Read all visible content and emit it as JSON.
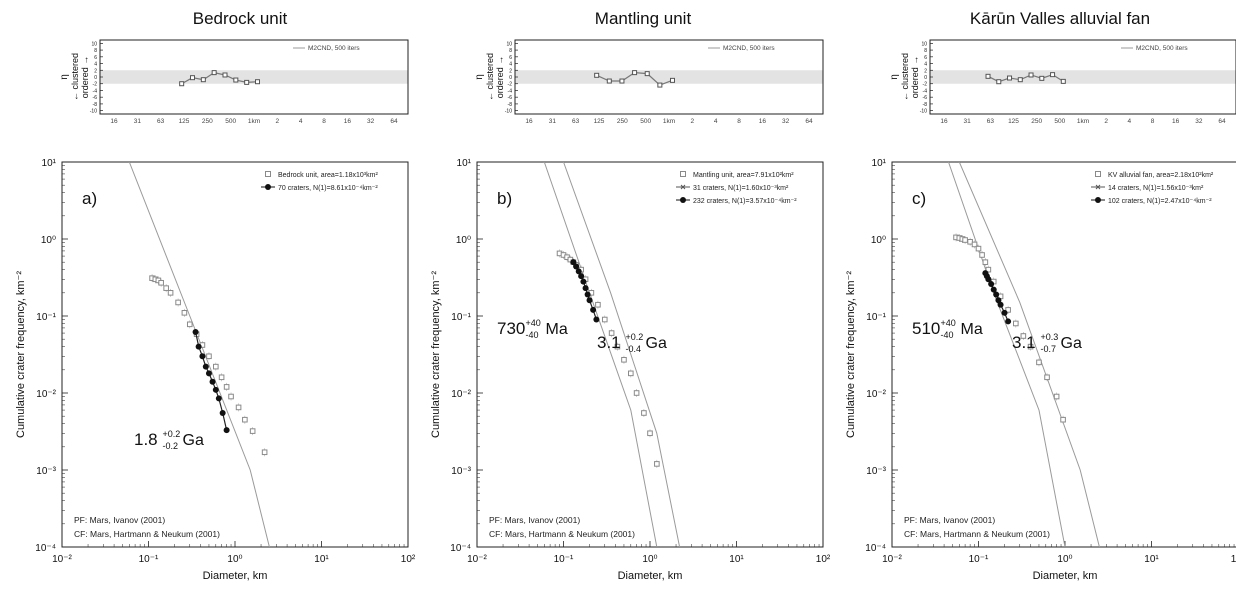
{
  "colors": {
    "ordered_band": "#e3e3e3",
    "curve": "#9a9a9a",
    "data_filled": "#111111",
    "data_open": "#8a8a8a",
    "axis": "#222222"
  },
  "shared": {
    "rand_ticks": [
      "16",
      "31",
      "63",
      "125",
      "250",
      "500",
      "1km",
      "2",
      "4",
      "8",
      "16",
      "32",
      "64"
    ],
    "rand_y_ticks": [
      "10",
      "8",
      "6",
      "4",
      "2",
      "0",
      "-2",
      "-4",
      "-6",
      "-8",
      "-10"
    ],
    "rand_legend": "M2CND, 500 iters",
    "rand_ylabel": {
      "line1": "← clustered",
      "line2": "ordered →",
      "symbol": "η"
    },
    "ylabel": "Cumulative crater frequency, km⁻²",
    "xlabel": "Diameter, km",
    "y_ticks": [
      "10¹",
      "10⁰",
      "10⁻¹",
      "10⁻²",
      "10⁻³",
      "10⁻⁴"
    ],
    "x_ticks": [
      "10⁻²",
      "10⁻¹",
      "10⁰",
      "10¹",
      "10²"
    ],
    "pf_label": "PF: Mars, Ivanov (2001)",
    "cf_label": "CF: Mars, Hartmann & Neukum (2001)"
  },
  "chart_data": [
    {
      "type": "scatter",
      "title": "Bedrock unit",
      "panel_letter": "a)",
      "xscale": "log",
      "yscale": "log",
      "xlim": [
        0.01,
        100
      ],
      "ylim": [
        0.0001,
        10
      ],
      "randomness": {
        "x_labels": [
          "125",
          "250",
          "500",
          "1km"
        ],
        "values": [
          -2.0,
          -0.2,
          -0.8,
          1.3,
          0.6,
          -0.9,
          -1.6,
          -1.4
        ]
      },
      "legend": [
        {
          "label": "Bedrock unit, area=1.18x10³km²",
          "marker": "open"
        },
        {
          "label": "70 craters, N(1)=8.61x10⁻⁴km⁻²",
          "marker": "filled"
        }
      ],
      "ages": [
        {
          "value": "1.8",
          "plus": "+0.2",
          "minus": "-0.2",
          "unit": "Ga"
        }
      ],
      "series": [
        {
          "name": "Bedrock unit, area=1.18x10³km²",
          "marker": "open",
          "x": [
            0.11,
            0.12,
            0.13,
            0.14,
            0.16,
            0.18,
            0.22,
            0.26,
            0.3,
            0.36,
            0.42,
            0.5,
            0.6,
            0.7,
            0.8,
            0.9,
            1.1,
            1.3,
            1.6,
            2.2
          ],
          "y": [
            0.31,
            0.3,
            0.29,
            0.27,
            0.23,
            0.2,
            0.15,
            0.11,
            0.078,
            0.058,
            0.042,
            0.03,
            0.022,
            0.016,
            0.012,
            0.009,
            0.0065,
            0.0045,
            0.0032,
            0.0017
          ]
        },
        {
          "name": "70 craters, N(1)=8.61x10⁻⁴km⁻²",
          "marker": "filled",
          "x": [
            0.35,
            0.38,
            0.42,
            0.46,
            0.5,
            0.55,
            0.6,
            0.65,
            0.72,
            0.8
          ],
          "y": [
            0.062,
            0.04,
            0.03,
            0.022,
            0.018,
            0.014,
            0.011,
            0.0085,
            0.0055,
            0.0033
          ]
        }
      ],
      "curves": [
        {
          "name": "PF",
          "points": [
            [
              0.06,
              10
            ],
            [
              0.3,
              0.1
            ],
            [
              1.5,
              0.001
            ],
            [
              2.5,
              0.0001
            ]
          ]
        }
      ]
    },
    {
      "type": "scatter",
      "title": "Mantling unit",
      "panel_letter": "b)",
      "xscale": "log",
      "yscale": "log",
      "xlim": [
        0.01,
        100
      ],
      "ylim": [
        0.0001,
        10
      ],
      "randomness": {
        "x_labels": [
          "125",
          "250",
          "500",
          "1km"
        ],
        "values": [
          0.5,
          -1.2,
          -1.2,
          1.3,
          1.0,
          -2.4,
          -1.0
        ]
      },
      "legend": [
        {
          "label": "Mantling unit, area=7.91x10²km²",
          "marker": "open"
        },
        {
          "label": "31 craters, N(1)=1.60x10⁻³km²",
          "marker": "cross"
        },
        {
          "label": "232 craters, N(1)=3.57x10⁻⁴km⁻²",
          "marker": "filled"
        }
      ],
      "ages": [
        {
          "value": "730",
          "plus": "+40",
          "minus": "-40",
          "unit": "Ma"
        },
        {
          "value": "3.1",
          "plus": "+0.2",
          "minus": "-0.4",
          "unit": "Ga"
        }
      ],
      "series": [
        {
          "name": "Mantling unit, area=7.91x10²km²",
          "marker": "open",
          "x": [
            0.09,
            0.1,
            0.11,
            0.12,
            0.13,
            0.14,
            0.16,
            0.18,
            0.21,
            0.25,
            0.3,
            0.36,
            0.42,
            0.5,
            0.6,
            0.7,
            0.85,
            1.0,
            1.2
          ],
          "y": [
            0.65,
            0.62,
            0.58,
            0.54,
            0.5,
            0.46,
            0.4,
            0.3,
            0.2,
            0.14,
            0.09,
            0.06,
            0.04,
            0.027,
            0.018,
            0.01,
            0.0055,
            0.003,
            0.0012
          ]
        },
        {
          "name": "232 craters, N(1)=3.57x10⁻⁴km⁻²",
          "marker": "filled",
          "x": [
            0.13,
            0.14,
            0.15,
            0.16,
            0.17,
            0.18,
            0.19,
            0.2,
            0.22,
            0.24
          ],
          "y": [
            0.5,
            0.44,
            0.38,
            0.33,
            0.28,
            0.23,
            0.19,
            0.16,
            0.12,
            0.09
          ]
        }
      ],
      "curves": [
        {
          "name": "PF",
          "points": [
            [
              0.06,
              10
            ],
            [
              0.2,
              0.2
            ],
            [
              0.6,
              0.006
            ],
            [
              1.2,
              0.0001
            ]
          ]
        },
        {
          "name": "CF",
          "points": [
            [
              0.1,
              10
            ],
            [
              0.35,
              0.2
            ],
            [
              1.2,
              0.003
            ],
            [
              2.2,
              0.0001
            ]
          ]
        }
      ]
    },
    {
      "type": "scatter",
      "title": "Kārūn Valles alluvial fan",
      "panel_letter": "c)",
      "xscale": "log",
      "yscale": "log",
      "xlim": [
        0.01,
        100
      ],
      "ylim": [
        0.0001,
        10
      ],
      "randomness": {
        "x_labels": [
          "63",
          "125",
          "250",
          "500"
        ],
        "values": [
          0.2,
          -1.4,
          -0.3,
          -0.8,
          0.6,
          -0.4,
          0.7,
          -1.3
        ]
      },
      "legend": [
        {
          "label": "KV alluvial fan, area=2.18x10²km²",
          "marker": "open"
        },
        {
          "label": "14 craters, N(1)=1.56x10⁻³km²",
          "marker": "cross"
        },
        {
          "label": "102 craters, N(1)=2.47x10⁻⁴km⁻²",
          "marker": "filled"
        }
      ],
      "ages": [
        {
          "value": "510",
          "plus": "+40",
          "minus": "-40",
          "unit": "Ma"
        },
        {
          "value": "3.1",
          "plus": "+0.3",
          "minus": "-0.7",
          "unit": "Ga"
        }
      ],
      "series": [
        {
          "name": "KV alluvial fan, area=2.18x10²km²",
          "marker": "open",
          "x": [
            0.055,
            0.06,
            0.065,
            0.07,
            0.08,
            0.09,
            0.1,
            0.11,
            0.12,
            0.13,
            0.15,
            0.18,
            0.22,
            0.27,
            0.33,
            0.4,
            0.5,
            0.62,
            0.8,
            0.95
          ],
          "y": [
            1.05,
            1.03,
            1.0,
            0.97,
            0.92,
            0.85,
            0.75,
            0.62,
            0.5,
            0.4,
            0.28,
            0.18,
            0.12,
            0.08,
            0.055,
            0.04,
            0.025,
            0.016,
            0.009,
            0.0045
          ]
        },
        {
          "name": "102 craters, N(1)=2.47x10⁻⁴km⁻²",
          "marker": "filled",
          "x": [
            0.12,
            0.125,
            0.13,
            0.14,
            0.15,
            0.16,
            0.17,
            0.18,
            0.2,
            0.22
          ],
          "y": [
            0.36,
            0.33,
            0.3,
            0.26,
            0.22,
            0.19,
            0.16,
            0.14,
            0.11,
            0.085
          ]
        }
      ],
      "curves": [
        {
          "name": "PF",
          "points": [
            [
              0.045,
              10
            ],
            [
              0.15,
              0.2
            ],
            [
              0.5,
              0.006
            ],
            [
              1.0,
              0.0001
            ]
          ]
        },
        {
          "name": "CF",
          "points": [
            [
              0.06,
              10
            ],
            [
              0.3,
              0.15
            ],
            [
              1.5,
              0.001
            ],
            [
              2.5,
              0.0001
            ]
          ]
        }
      ]
    }
  ]
}
